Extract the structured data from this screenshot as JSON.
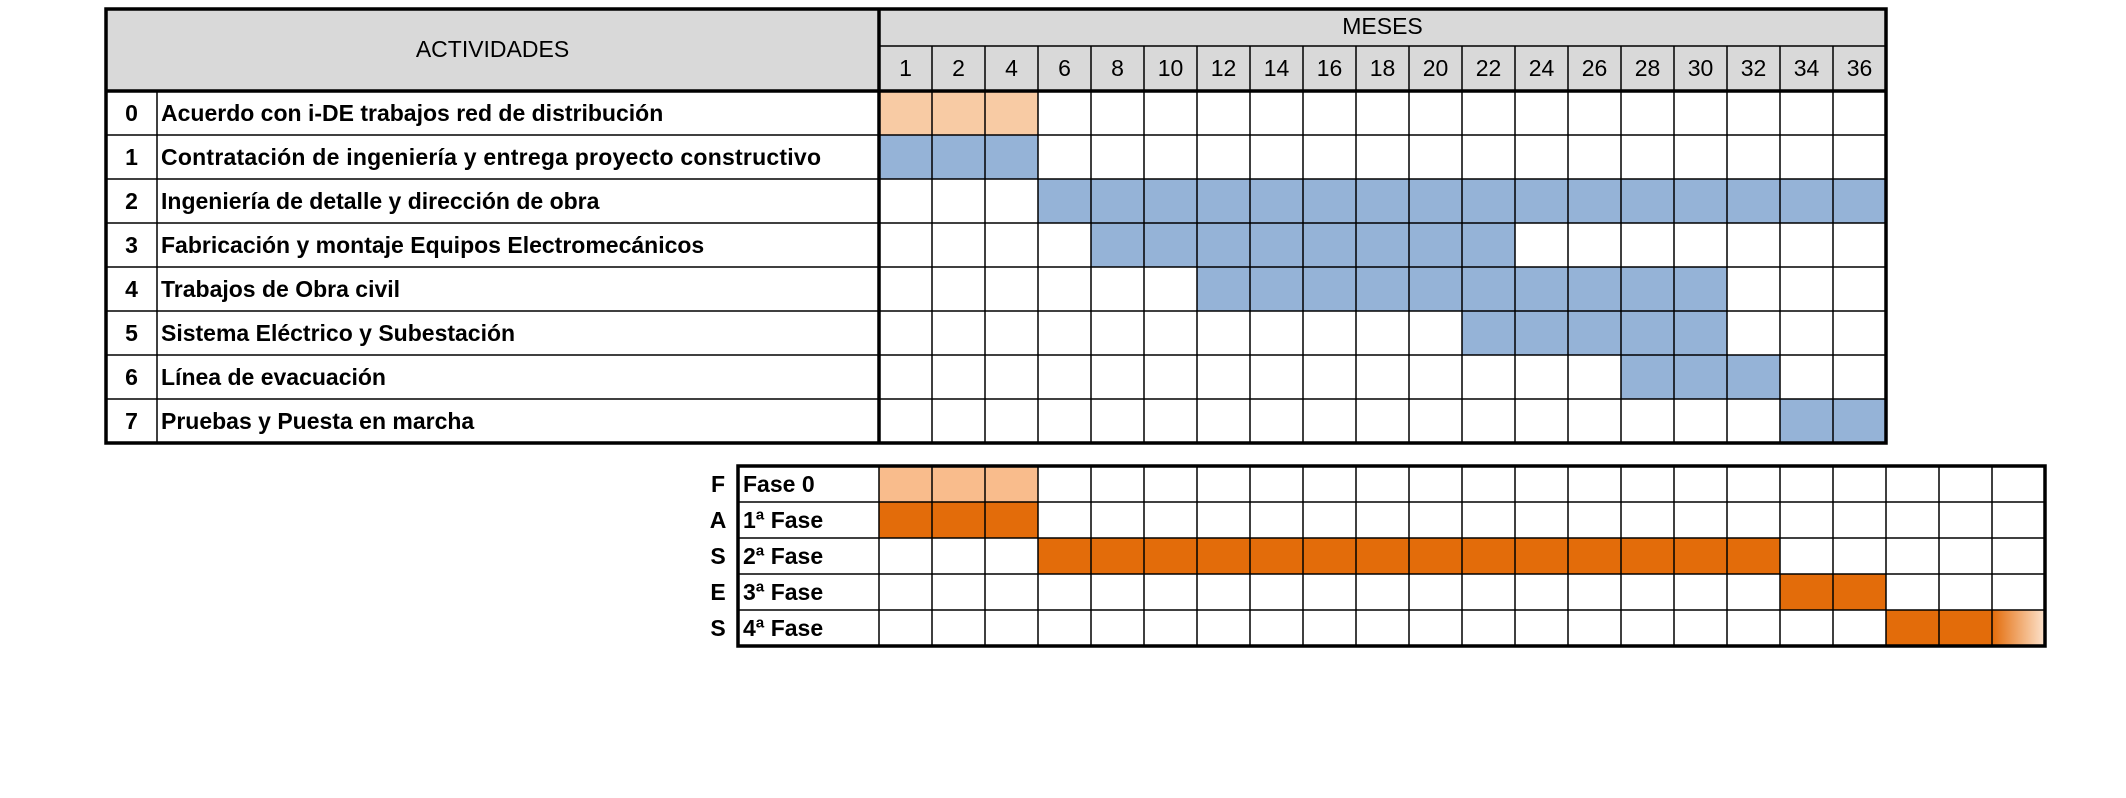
{
  "chart_data": {
    "type": "table",
    "activities_header": "ACTIVIDADES",
    "months_header": "MESES",
    "months": [
      "1",
      "2",
      "4",
      "6",
      "8",
      "10",
      "12",
      "14",
      "16",
      "18",
      "20",
      "22",
      "24",
      "26",
      "28",
      "30",
      "32",
      "34",
      "36"
    ],
    "activities": [
      {
        "id": "0",
        "label": "Acuerdo con i-DE trabajos red de distribución",
        "start_col": 0,
        "end_col": 2,
        "color": "#f8cba4"
      },
      {
        "id": "1",
        "label": "Contratación de ingeniería y entrega proyecto constructivo",
        "start_col": 0,
        "end_col": 2,
        "color": "#95b3d7"
      },
      {
        "id": "2",
        "label": "Ingeniería de detalle y dirección de obra",
        "start_col": 3,
        "end_col": 18,
        "color": "#95b3d7"
      },
      {
        "id": "3",
        "label": "Fabricación y montaje Equipos Electromecánicos",
        "start_col": 4,
        "end_col": 11,
        "color": "#95b3d7"
      },
      {
        "id": "4",
        "label": "Trabajos de Obra civil",
        "start_col": 6,
        "end_col": 15,
        "color": "#95b3d7"
      },
      {
        "id": "5",
        "label": "Sistema Eléctrico y Subestación",
        "start_col": 11,
        "end_col": 15,
        "color": "#95b3d7"
      },
      {
        "id": "6",
        "label": "Línea de evacuación",
        "start_col": 14,
        "end_col": 16,
        "color": "#95b3d7"
      },
      {
        "id": "7",
        "label": "Pruebas y Puesta en marcha",
        "start_col": 17,
        "end_col": 18,
        "color": "#95b3d7"
      }
    ],
    "phases_side_letters": [
      "F",
      "A",
      "S",
      "E",
      "S"
    ],
    "phase_columns": 22,
    "phases": [
      {
        "label": "Fase 0",
        "start_col": 0,
        "end_col": 2,
        "color": "#f9bc8c"
      },
      {
        "label": "1ª Fase",
        "start_col": 0,
        "end_col": 2,
        "color": "#e36c0a"
      },
      {
        "label": "2ª Fase",
        "start_col": 3,
        "end_col": 16,
        "color": "#e36c0a"
      },
      {
        "label": "3ª Fase",
        "start_col": 17,
        "end_col": 18,
        "color": "#e36c0a"
      },
      {
        "label": "4ª Fase",
        "start_col": 19,
        "end_col": 21,
        "color": "#e36c0a",
        "fade_last": true
      }
    ],
    "colors": {
      "header_fill": "#d9d9d9",
      "grid": "#000000"
    }
  }
}
